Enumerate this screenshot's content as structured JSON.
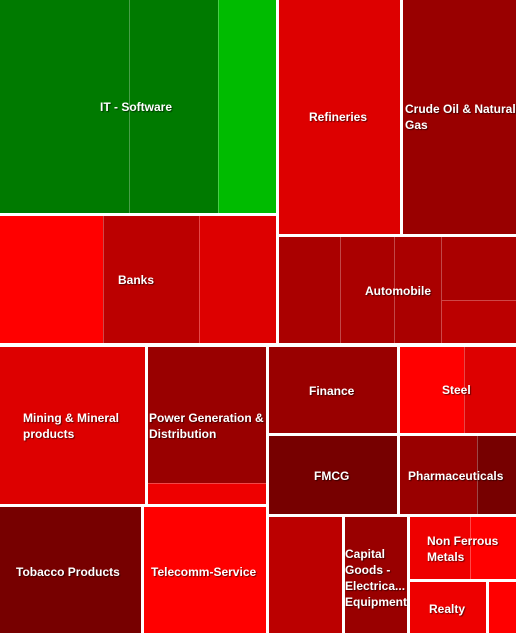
{
  "chart_data": {
    "type": "treemap",
    "sectors": [
      {
        "name": "IT - Software",
        "color": "#007a00",
        "subs": [
          "#007a00",
          "#007a00",
          "#00bb00"
        ]
      },
      {
        "name": "Refineries",
        "color": "#dd0000",
        "subs": [
          "#dd0000"
        ]
      },
      {
        "name": "Crude Oil & Natural Gas",
        "color": "#990000",
        "subs": [
          "#990000"
        ]
      },
      {
        "name": "Banks",
        "color": "#bb0000",
        "subs": [
          "#ff0000",
          "#bb0000",
          "#dd0000"
        ]
      },
      {
        "name": "Automobile",
        "color": "#aa0000",
        "subs": [
          "#aa0000",
          "#aa0000",
          "#aa0000",
          "#aa0000",
          "#bb0000"
        ]
      },
      {
        "name": "Mining & Mineral products",
        "color": "#dd0000",
        "subs": [
          "#dd0000"
        ]
      },
      {
        "name": "Power Generation & Distribution",
        "color": "#990000",
        "subs": [
          "#990000",
          "#ee0000"
        ]
      },
      {
        "name": "Finance",
        "color": "#990000",
        "subs": [
          "#990000"
        ]
      },
      {
        "name": "Steel",
        "color": "#ff0000",
        "subs": [
          "#ff0000",
          "#dd0000"
        ]
      },
      {
        "name": "FMCG",
        "color": "#770000",
        "subs": [
          "#770000"
        ]
      },
      {
        "name": "Pharmaceuticals",
        "color": "#990000",
        "subs": [
          "#990000",
          "#770000"
        ]
      },
      {
        "name": "Tobacco Products",
        "color": "#770000",
        "subs": [
          "#770000"
        ]
      },
      {
        "name": "Telecomm-Service",
        "color": "#ff0000",
        "subs": [
          "#ff0000"
        ]
      },
      {
        "name": "",
        "color": "#bb0000",
        "subs": [
          "#bb0000"
        ]
      },
      {
        "name": "Capital Goods - Electrica... Equipment",
        "color": "#990000",
        "subs": [
          "#990000"
        ]
      },
      {
        "name": "Non Ferrous Metals",
        "color": "#ee0000",
        "subs": [
          "#ee0000",
          "#ff0000"
        ]
      },
      {
        "name": "Realty",
        "color": "#ee0000",
        "subs": [
          "#ee0000"
        ]
      },
      {
        "name": "",
        "color": "#ff0000",
        "subs": [
          "#ff0000"
        ]
      }
    ]
  }
}
